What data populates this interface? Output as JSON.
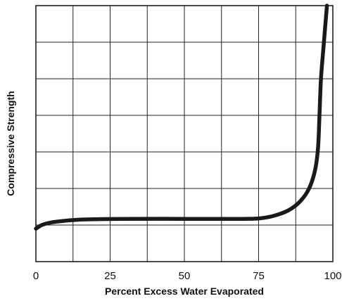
{
  "chart_data": {
    "type": "line",
    "title": "",
    "xlabel": "Percent Excess Water Evaporated",
    "ylabel": "Compressive Strength",
    "xlim": [
      0,
      100
    ],
    "ylim": [
      0,
      7
    ],
    "x_ticks": [
      0,
      25,
      50,
      75,
      100
    ],
    "x_tick_labels": [
      "0",
      "25",
      "50",
      "75",
      "100"
    ],
    "y_tick_labels": [],
    "grid": true,
    "legend": "none",
    "series": [
      {
        "color": "#1a1a1a",
        "points": [
          [
            0,
            0.9
          ],
          [
            2,
            1.0
          ],
          [
            5,
            1.07
          ],
          [
            10,
            1.12
          ],
          [
            15,
            1.15
          ],
          [
            20,
            1.16
          ],
          [
            30,
            1.17
          ],
          [
            50,
            1.17
          ],
          [
            70,
            1.17
          ],
          [
            75,
            1.18
          ],
          [
            80,
            1.25
          ],
          [
            85,
            1.4
          ],
          [
            89,
            1.65
          ],
          [
            92,
            2.0
          ],
          [
            94,
            2.5
          ],
          [
            95,
            3.1
          ],
          [
            95.5,
            4.0
          ],
          [
            96,
            5.0
          ],
          [
            97,
            6.0
          ],
          [
            98,
            7.0
          ]
        ]
      }
    ]
  }
}
